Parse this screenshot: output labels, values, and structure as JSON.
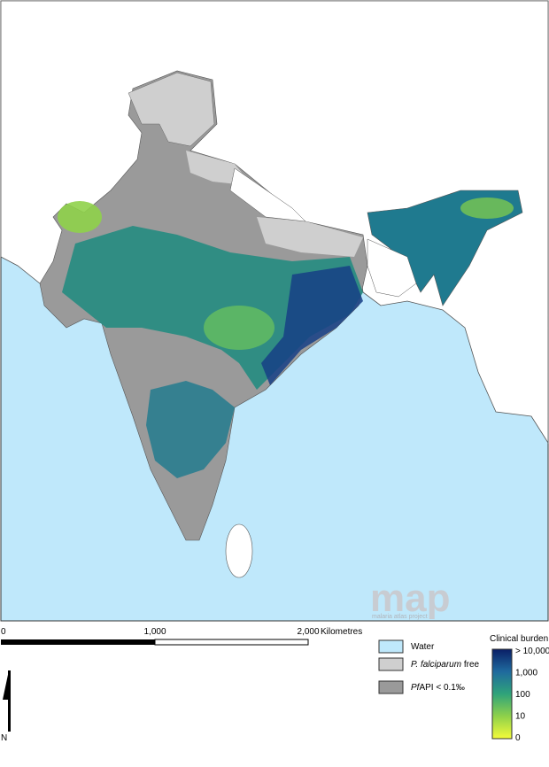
{
  "logo": {
    "title": "map",
    "subtitle": "malaria atlas project"
  },
  "scale": {
    "ticks": [
      "0",
      "1,000",
      "2,000"
    ],
    "unit": "Kilometres"
  },
  "legend": {
    "water": "Water",
    "free": {
      "italic": "P. falciparum",
      "text": "free"
    },
    "low": {
      "italic": "Pf",
      "text": "API < 0.1‰"
    }
  },
  "colorbar": {
    "title": "Clinical burden",
    "labels": [
      "> 10,000",
      "1,000",
      "100",
      "10",
      "0"
    ]
  },
  "north": "N"
}
